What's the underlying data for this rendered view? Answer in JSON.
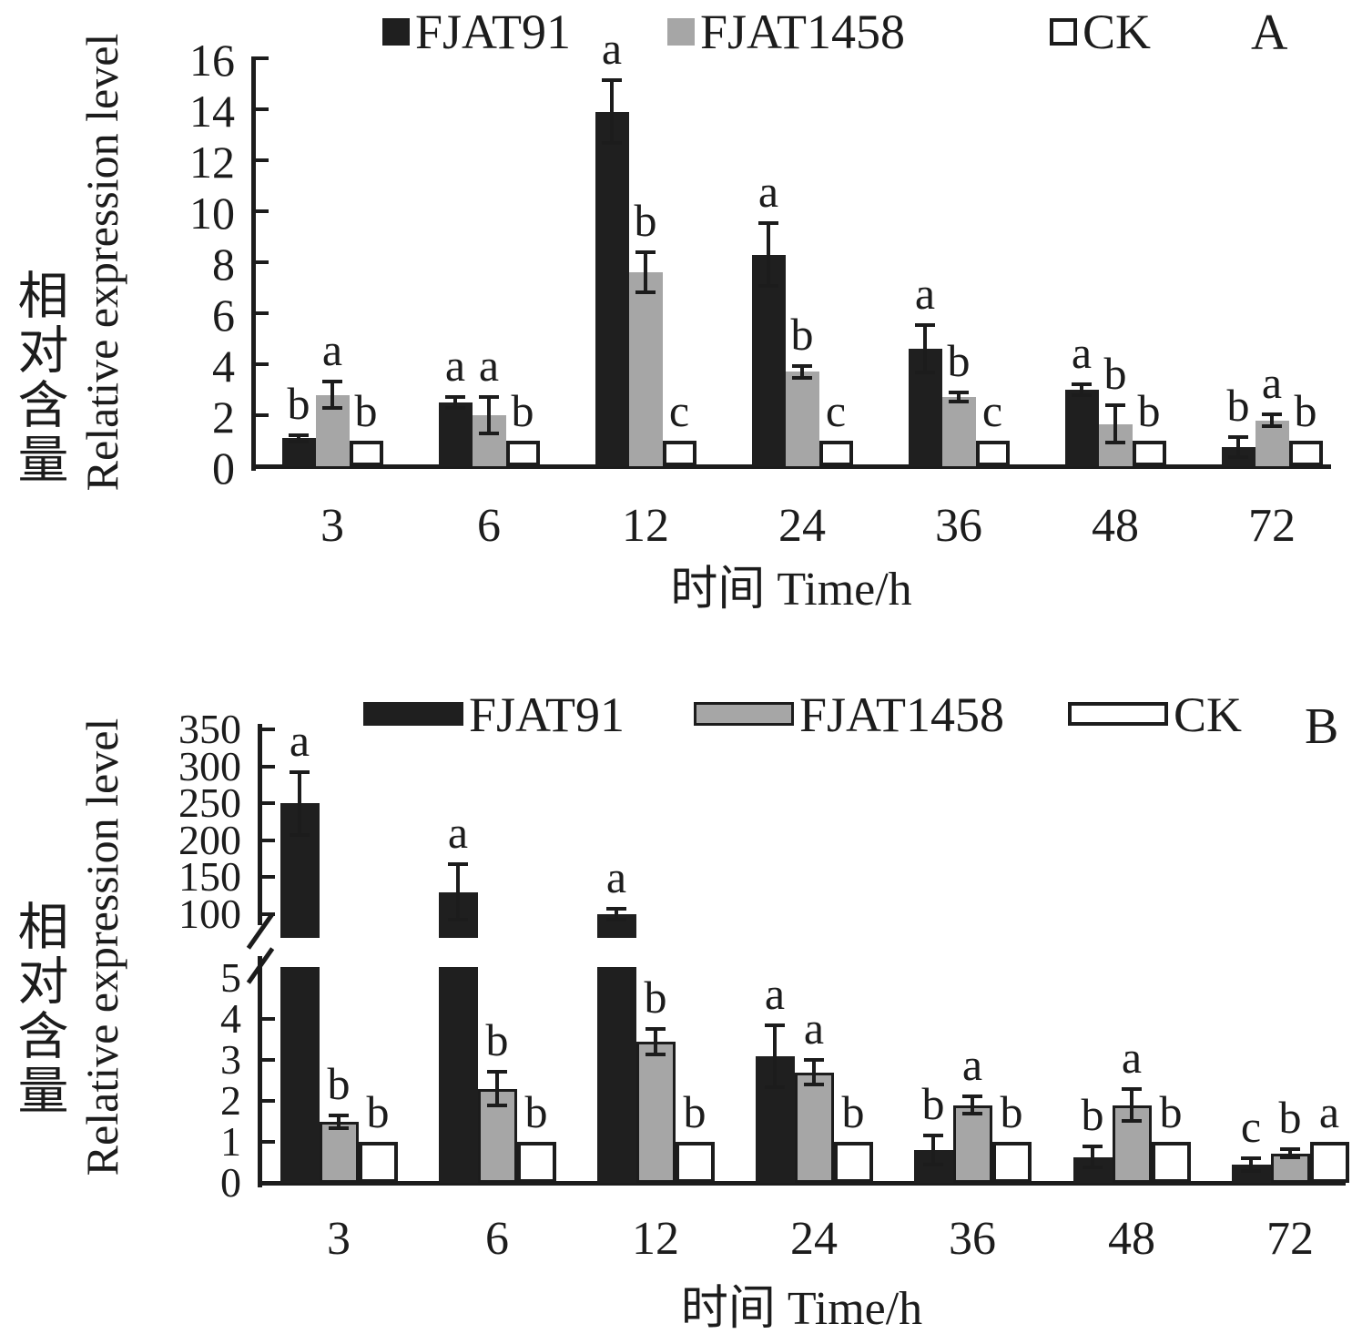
{
  "figure": {
    "background": "#ffffff",
    "series_colors": {
      "FJAT91": "#1f1f1f",
      "FJAT1458": "#a6a6a6",
      "CK": "#ffffff"
    },
    "legend_labels": [
      "FJAT91",
      "FJAT1458",
      "CK"
    ]
  },
  "chart_data": [
    {
      "panel": "A",
      "type": "bar",
      "title": "",
      "x_title": "时间 Time/h",
      "y_title_zh": "相对含量",
      "y_title_en": "Relative expression level",
      "categories": [
        "3",
        "6",
        "12",
        "24",
        "36",
        "48",
        "72"
      ],
      "y_ticks": [
        0,
        2,
        4,
        6,
        8,
        10,
        12,
        14,
        16
      ],
      "ylim": [
        0,
        16
      ],
      "grid": false,
      "legend_position": "top",
      "axis_break": false,
      "series": [
        {
          "name": "FJAT91",
          "color": "#1f1f1f",
          "values": [
            1.1,
            2.5,
            13.9,
            8.3,
            4.6,
            3.0,
            0.75
          ],
          "errors": [
            0.2,
            0.3,
            1.3,
            1.3,
            1.0,
            0.3,
            0.45
          ],
          "letters": [
            "b",
            "a",
            "a",
            "a",
            "a",
            "a",
            "b"
          ]
        },
        {
          "name": "FJAT1458",
          "color": "#a6a6a6",
          "values": [
            2.8,
            2.0,
            7.6,
            3.7,
            2.7,
            1.65,
            1.8
          ],
          "errors": [
            0.6,
            0.8,
            0.85,
            0.3,
            0.25,
            0.8,
            0.3
          ],
          "letters": [
            "a",
            "a",
            "b",
            "b",
            "b",
            "b",
            "a"
          ]
        },
        {
          "name": "CK",
          "color": "#ffffff",
          "values": [
            1,
            1,
            1,
            1,
            1,
            1,
            1
          ],
          "errors": [
            0,
            0,
            0,
            0,
            0,
            0,
            0
          ],
          "letters": [
            "b",
            "b",
            "c",
            "c",
            "c",
            "b",
            "b"
          ]
        }
      ]
    },
    {
      "panel": "B",
      "type": "bar",
      "title": "",
      "x_title": "时间 Time/h",
      "y_title_zh": "相对含量",
      "y_title_en": "Relative expression level",
      "categories": [
        "3",
        "6",
        "12",
        "24",
        "36",
        "48",
        "72"
      ],
      "y_ticks_upper": [
        350,
        300,
        250,
        200,
        150,
        100
      ],
      "y_ticks_lower": [
        5,
        4,
        3,
        2,
        1,
        0
      ],
      "ylim_lower": [
        0,
        5
      ],
      "ylim_upper": [
        100,
        350
      ],
      "grid": false,
      "legend_position": "top",
      "axis_break": true,
      "series": [
        {
          "name": "FJAT91",
          "color": "#1f1f1f",
          "values": [
            250,
            130,
            100,
            3.1,
            0.8,
            0.63,
            0.44
          ],
          "errors": [
            45,
            40,
            10,
            0.8,
            0.4,
            0.3,
            0.2
          ],
          "letters": [
            "a",
            "a",
            "a",
            "a",
            "b",
            "b",
            "c"
          ]
        },
        {
          "name": "FJAT1458",
          "color": "#a6a6a6",
          "values": [
            1.5,
            2.3,
            3.45,
            2.7,
            1.9,
            1.9,
            0.72
          ],
          "errors": [
            0.2,
            0.45,
            0.35,
            0.35,
            0.26,
            0.43,
            0.15
          ],
          "letters": [
            "b",
            "b",
            "b",
            "a",
            "a",
            "a",
            "b"
          ]
        },
        {
          "name": "CK",
          "color": "#ffffff",
          "values": [
            1,
            1,
            1,
            1,
            1,
            1,
            1
          ],
          "errors": [
            0,
            0,
            0,
            0,
            0,
            0,
            0
          ],
          "letters": [
            "b",
            "b",
            "b",
            "b",
            "b",
            "b",
            "a"
          ]
        }
      ]
    }
  ]
}
